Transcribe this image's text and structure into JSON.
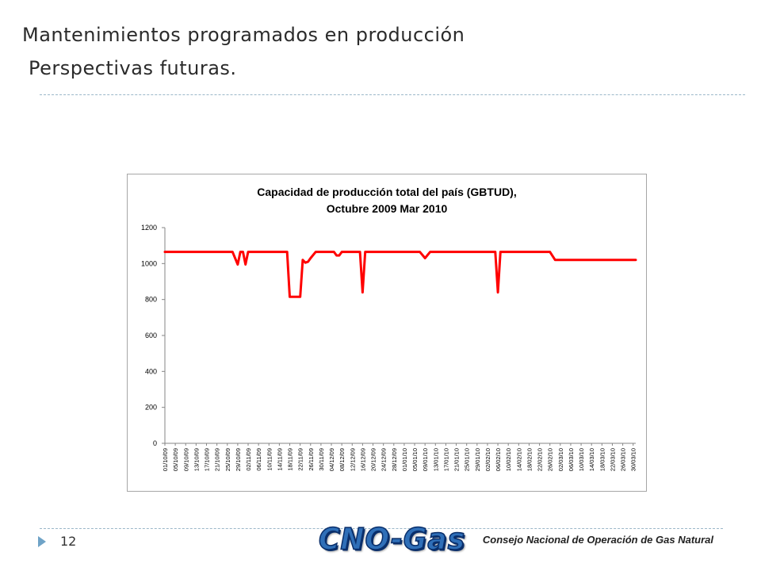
{
  "slide": {
    "title_line1": "Mantenimientos programados en producción",
    "title_line2": "Perspectivas futuras.",
    "page_number": "12",
    "logo_text": "CNO-Gas",
    "org_name": "Consejo Nacional de Operación de Gas Natural",
    "accent_color": "#6fa3c7"
  },
  "chart_data": {
    "type": "line",
    "title": "Capacidad de producción total del país (GBTUD),",
    "subtitle": "Octubre 2009 Mar 2010",
    "xlabel": "",
    "ylabel": "",
    "ylim": [
      0,
      1200
    ],
    "yticks": [
      0,
      200,
      400,
      600,
      800,
      1000,
      1200
    ],
    "grid": false,
    "legend": "none",
    "line_color": "#ff0000",
    "x_tick_labels": [
      "01/10/09",
      "05/10/09",
      "09/10/09",
      "13/10/09",
      "17/10/09",
      "21/10/09",
      "25/10/09",
      "29/10/09",
      "02/11/09",
      "06/11/09",
      "10/11/09",
      "14/11/09",
      "18/11/09",
      "22/11/09",
      "26/11/09",
      "30/11/09",
      "04/12/09",
      "08/12/09",
      "12/12/09",
      "16/12/09",
      "20/12/09",
      "24/12/09",
      "28/12/09",
      "01/01/10",
      "05/01/10",
      "09/01/10",
      "13/01/10",
      "17/01/10",
      "21/01/10",
      "25/01/10",
      "29/01/10",
      "02/02/10",
      "06/02/10",
      "10/02/10",
      "14/02/10",
      "18/02/10",
      "22/02/10",
      "26/02/10",
      "02/03/10",
      "06/03/10",
      "10/03/10",
      "14/03/10",
      "18/03/10",
      "22/03/10",
      "26/03/10",
      "30/03/10"
    ],
    "series": [
      {
        "x": [
          "01/10/09",
          "27/10/09",
          "29/10/09",
          "30/10/09",
          "31/10/09",
          "01/11/09",
          "02/11/09",
          "17/11/09",
          "18/11/09",
          "22/11/09",
          "23/11/09",
          "24/11/09",
          "25/11/09",
          "26/11/09",
          "28/11/09",
          "05/12/09",
          "06/12/09",
          "07/12/09",
          "08/12/09",
          "15/12/09",
          "16/12/09",
          "17/12/09",
          "07/01/10",
          "09/01/10",
          "11/01/10",
          "05/02/10",
          "06/02/10",
          "07/02/10",
          "26/02/10",
          "28/02/10",
          "31/03/10"
        ],
        "values": [
          1065,
          1065,
          995,
          1065,
          1065,
          995,
          1065,
          1065,
          815,
          815,
          1020,
          1005,
          1010,
          1030,
          1065,
          1065,
          1045,
          1045,
          1065,
          1065,
          840,
          1065,
          1065,
          1030,
          1065,
          1065,
          840,
          1065,
          1065,
          1020,
          1020
        ]
      }
    ]
  }
}
